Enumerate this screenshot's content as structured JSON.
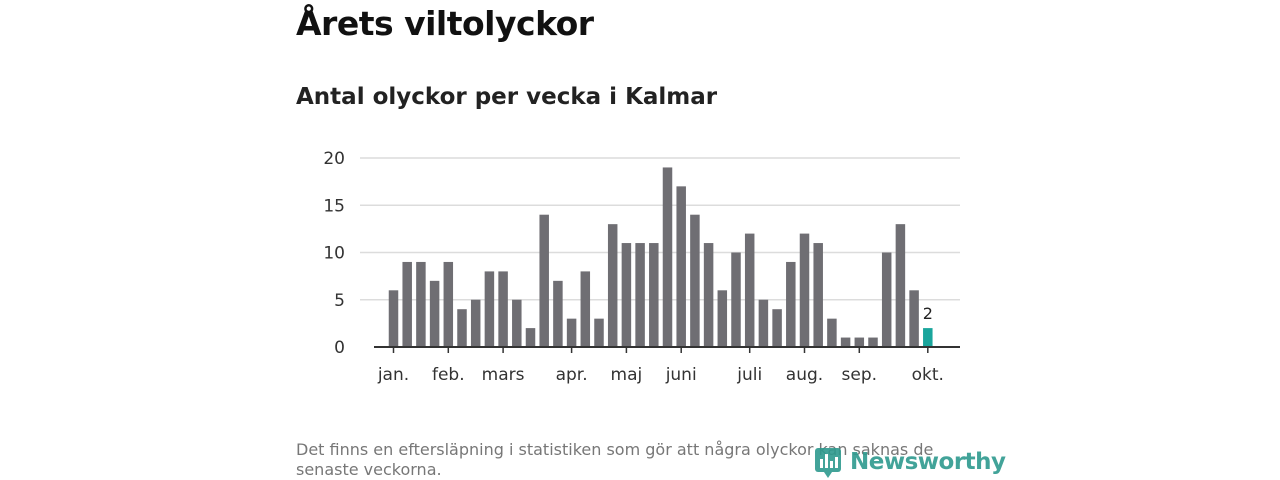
{
  "title": "Årets viltolyckor",
  "subtitle": "Antal olyckor per vecka i Kalmar",
  "footnote": "Det finns en eftersläpning i statistiken som gör att några olyckor kan saknas de senaste veckorna.",
  "logo_text": "Newsworthy",
  "colors": {
    "bar": "#6f6e73",
    "highlight": "#1aa59c",
    "grid": "#dcdcdc",
    "axis": "#333333"
  },
  "chart_data": {
    "type": "bar",
    "title": "Antal olyckor per vecka i Kalmar",
    "xlabel": "",
    "ylabel": "",
    "ylim": [
      0,
      20
    ],
    "yticks": [
      0,
      5,
      10,
      15,
      20
    ],
    "month_labels": [
      {
        "label": "jan.",
        "week": 1
      },
      {
        "label": "feb.",
        "week": 5
      },
      {
        "label": "mars",
        "week": 9
      },
      {
        "label": "apr.",
        "week": 14
      },
      {
        "label": "maj",
        "week": 18
      },
      {
        "label": "juni",
        "week": 22
      },
      {
        "label": "juli",
        "week": 27
      },
      {
        "label": "aug.",
        "week": 31
      },
      {
        "label": "sep.",
        "week": 35
      },
      {
        "label": "okt.",
        "week": 40
      }
    ],
    "weeks": [
      1,
      2,
      3,
      4,
      5,
      6,
      7,
      8,
      9,
      10,
      11,
      12,
      13,
      14,
      15,
      16,
      17,
      18,
      19,
      20,
      21,
      22,
      23,
      24,
      25,
      26,
      27,
      28,
      29,
      30,
      31,
      32,
      33,
      34,
      35,
      36,
      37,
      38,
      39,
      40
    ],
    "values": [
      6,
      9,
      9,
      7,
      9,
      4,
      5,
      8,
      8,
      5,
      2,
      14,
      7,
      3,
      8,
      3,
      13,
      11,
      11,
      11,
      19,
      17,
      14,
      11,
      6,
      10,
      12,
      5,
      4,
      9,
      12,
      11,
      3,
      1,
      1,
      1,
      10,
      13,
      6,
      2
    ],
    "highlight_index": 39,
    "highlight_label": "2"
  }
}
